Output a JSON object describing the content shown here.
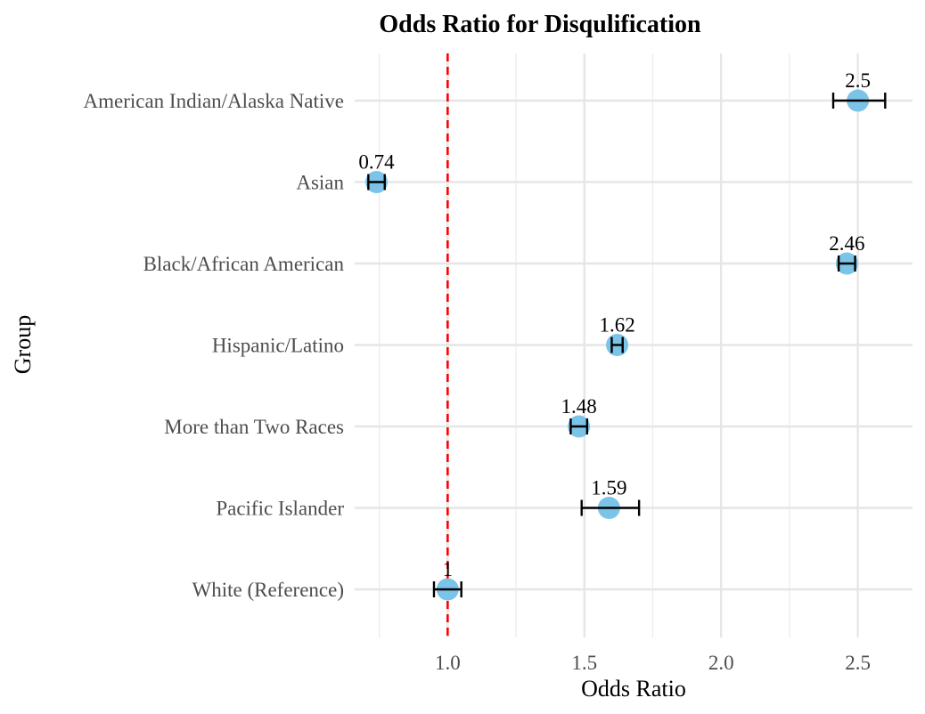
{
  "chart_data": {
    "type": "scatter",
    "title": "Odds Ratio for Disqulification",
    "xlabel": "Odds Ratio",
    "ylabel": "Group",
    "xlim": [
      0.66,
      2.7
    ],
    "x_ticks": [
      1.0,
      1.5,
      2.0,
      2.5
    ],
    "x_tick_labels": [
      "1.0",
      "1.5",
      "2.0",
      "2.5"
    ],
    "reference_line": {
      "x": 1.0,
      "color": "#ff0000",
      "style": "dashed"
    },
    "point_color": "#7cc3e8",
    "grid": true,
    "legend": "none",
    "series": [
      {
        "categories": [
          "American Indian/Alaska Native",
          "Asian",
          "Black/African American",
          "Hispanic/Latino",
          "More than Two Races",
          "Pacific Islander",
          "White (Reference)"
        ],
        "values": [
          2.5,
          0.74,
          2.46,
          1.62,
          1.48,
          1.59,
          1.0
        ],
        "labels": [
          "2.5",
          "0.74",
          "2.46",
          "1.62",
          "1.48",
          "1.59",
          "1"
        ],
        "ci_low": [
          2.41,
          0.71,
          2.43,
          1.6,
          1.45,
          1.49,
          0.95
        ],
        "ci_high": [
          2.6,
          0.77,
          2.49,
          1.64,
          1.51,
          1.7,
          1.05
        ]
      }
    ]
  }
}
